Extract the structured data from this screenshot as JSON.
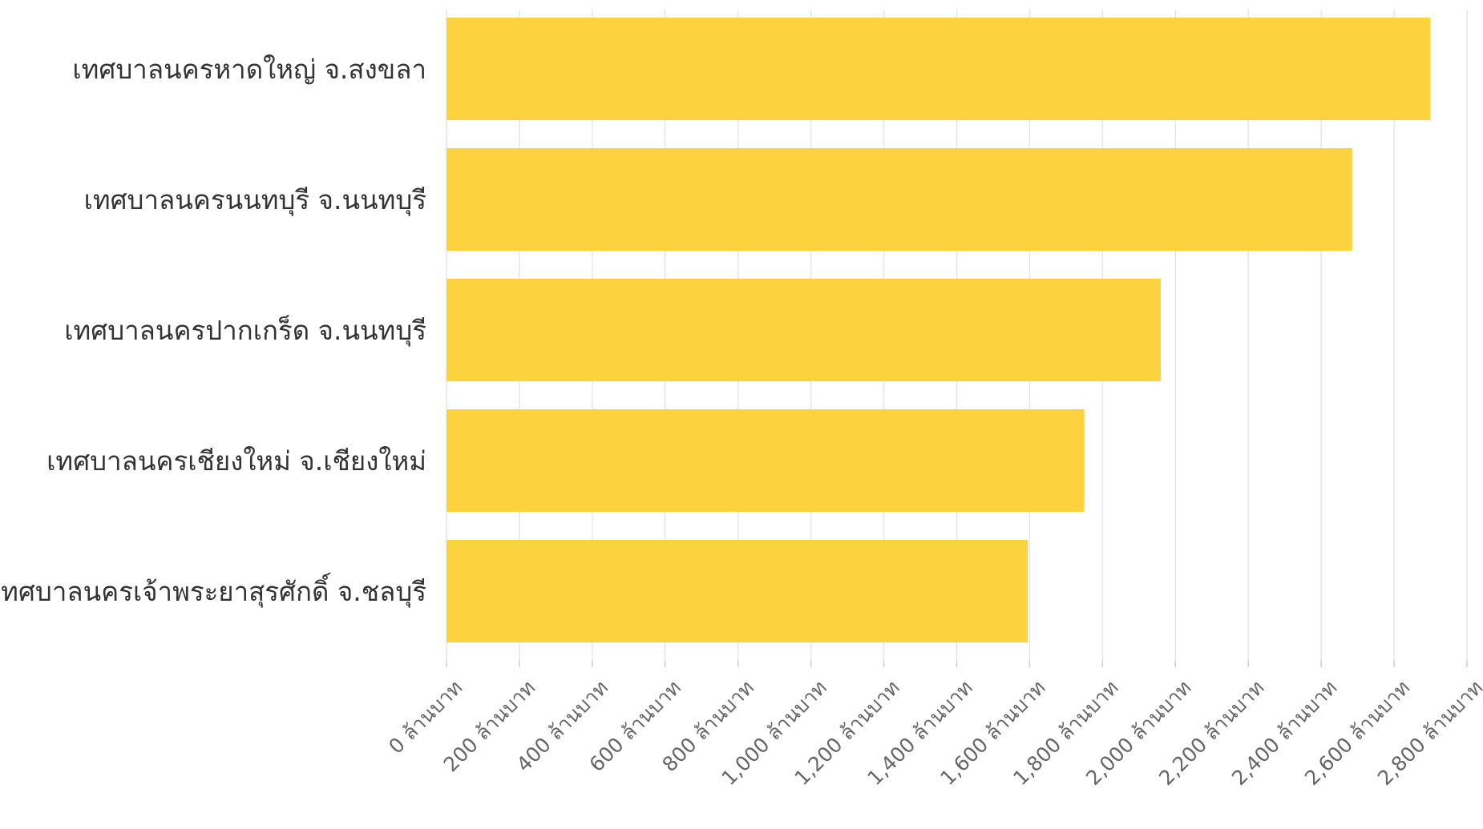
{
  "chart_data": {
    "type": "bar",
    "orientation": "horizontal",
    "title": "",
    "xlabel": "",
    "ylabel": "",
    "categories": [
      "เทศบาลนครหาดใหญ่ จ.สงขลา",
      "เทศบาลนครนนทบุรี จ.นนทบุรี",
      "เทศบาลนครปากเกร็ด จ.นนทบุรี",
      "เทศบาลนครเชียงใหม่ จ.เชียงใหม่",
      "เทศบาลนครเจ้าพระยาสุรศักดิ์ จ.ชลบุรี"
    ],
    "values": [
      2700,
      2485,
      1960,
      1750,
      1595
    ],
    "unit_suffix": " ล้านบาท",
    "xlim": [
      0,
      2800
    ],
    "x_tick_step": 200,
    "x_tick_labels": [
      "0 ล้านบาท",
      "200 ล้านบาท",
      "400 ล้านบาท",
      "600 ล้านบาท",
      "800 ล้านบาท",
      "1,000 ล้านบาท",
      "1,200 ล้านบาท",
      "1,400 ล้านบาท",
      "1,600 ล้านบาท",
      "1,800 ล้านบาท",
      "2,000 ล้านบาท",
      "2,200 ล้านบาท",
      "2,400 ล้านบาท",
      "2,600 ล้านบาท",
      "2,800 ล้านบาท"
    ],
    "grid": true,
    "legend": "none",
    "bar_color": "#fcd33e"
  }
}
